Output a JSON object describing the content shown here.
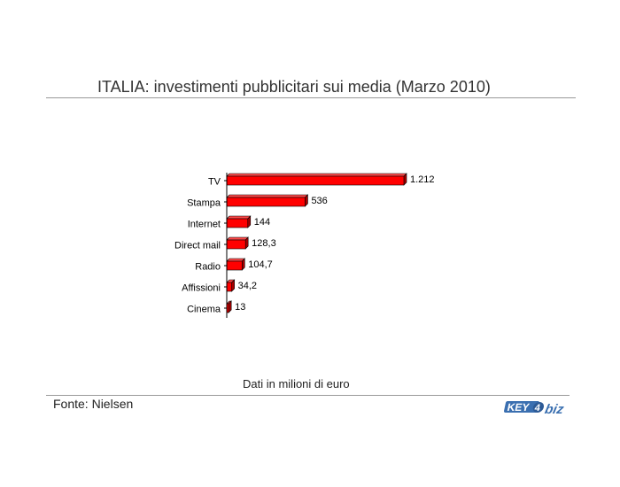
{
  "title": "ITALIA: investimenti pubblicitari sui media (Marzo 2010)",
  "note": "Dati in milioni di euro",
  "source": "Fonte: Nielsen",
  "logo_text": "KEY4biz",
  "colors": {
    "bar_front": "#ff0000",
    "bar_top": "#ff4a4a",
    "bar_side": "#a80000",
    "axis": "#000000"
  },
  "chart_data": {
    "type": "bar",
    "orientation": "horizontal",
    "style": "3d",
    "categories": [
      "TV",
      "Stampa",
      "Internet",
      "Direct mail",
      "Radio",
      "Affissioni",
      "Cinema"
    ],
    "values": [
      1212,
      536,
      144,
      128.3,
      104.7,
      34.2,
      13
    ],
    "value_labels": [
      "1.212",
      "536",
      "144",
      "128,3",
      "104,7",
      "34,2",
      "13"
    ],
    "xlim": [
      0,
      1212
    ],
    "grid": false,
    "legend": "none"
  }
}
